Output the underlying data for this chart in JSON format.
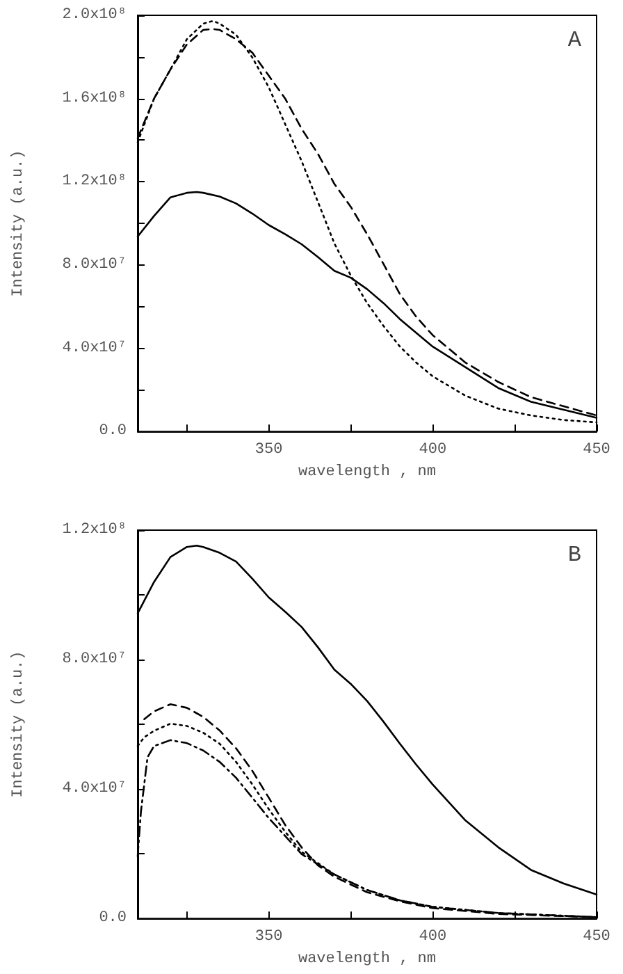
{
  "chart_data": [
    {
      "type": "line",
      "xlabel": "wavelength , nm",
      "ylabel": "Intensity (a.u.)",
      "annotations": [
        "A"
      ],
      "xlim": [
        310,
        450
      ],
      "xticks": [
        350,
        400,
        450,
        {
          "value": 325,
          "label": null
        },
        {
          "value": 375,
          "label": null
        },
        {
          "value": 425,
          "label": null
        }
      ],
      "ylim": [
        0,
        200000000
      ],
      "yticks": [
        {
          "value": 0,
          "label": "0.0"
        },
        {
          "value": 40000000,
          "label": "4.0x10⁷"
        },
        {
          "value": 80000000,
          "label": "8.0x10⁷"
        },
        {
          "value": 120000000,
          "label": "1.2x10⁸"
        },
        {
          "value": 160000000,
          "label": "1.6x10⁸"
        },
        {
          "value": 200000000,
          "label": "2.0x10⁸"
        },
        {
          "value": 20000000,
          "label": null
        },
        {
          "value": 60000000,
          "label": null
        },
        {
          "value": 100000000,
          "label": null
        },
        {
          "value": 140000000,
          "label": null
        },
        {
          "value": 180000000,
          "label": null
        }
      ],
      "grid": false,
      "marker": "none",
      "series": [
        {
          "color": "#000000",
          "line_style": "solid",
          "x": [
            310,
            315,
            320,
            325,
            328,
            330,
            335,
            340,
            345,
            350,
            355,
            360,
            365,
            370,
            375,
            380,
            385,
            390,
            395,
            400,
            410,
            420,
            430,
            440,
            450
          ],
          "values": [
            93700000,
            103600000,
            112500000,
            114700000,
            115100000,
            114700000,
            112900000,
            109600000,
            104700000,
            99200000,
            94800000,
            90000000,
            83800000,
            77200000,
            73900000,
            68400000,
            61700000,
            54000000,
            47400000,
            40800000,
            30900000,
            20900000,
            14300000,
            10400000,
            6600000
          ]
        },
        {
          "color": "#000000",
          "line_style": "dashed",
          "x": [
            310,
            315,
            320,
            325,
            330,
            333,
            335,
            340,
            345,
            350,
            355,
            360,
            365,
            370,
            375,
            380,
            385,
            390,
            395,
            400,
            410,
            420,
            430,
            440,
            450
          ],
          "values": [
            141000000,
            160000000,
            174000000,
            186000000,
            193000000,
            193400000,
            193000000,
            188500000,
            182000000,
            171000000,
            160000000,
            145500000,
            133400000,
            119000000,
            108000000,
            94800000,
            80500000,
            66000000,
            55100000,
            46300000,
            33100000,
            23800000,
            16500000,
            12100000,
            7700000
          ]
        },
        {
          "color": "#000000",
          "line_style": "dotted",
          "x": [
            310,
            315,
            320,
            325,
            330,
            333,
            335,
            340,
            345,
            350,
            355,
            360,
            365,
            370,
            375,
            380,
            385,
            390,
            395,
            400,
            410,
            420,
            430,
            440,
            450
          ],
          "values": [
            139000000,
            160000000,
            174000000,
            188500000,
            196000000,
            197300000,
            196000000,
            190700000,
            179700000,
            165400000,
            147700000,
            130000000,
            110300000,
            90400000,
            75000000,
            61700000,
            50700000,
            40800000,
            33100000,
            26500000,
            17200000,
            11000000,
            7700000,
            5500000,
            4400000
          ]
        }
      ]
    },
    {
      "type": "line",
      "xlabel": "wavelength , nm",
      "ylabel": "Intensity (a.u.)",
      "annotations": [
        "B"
      ],
      "xlim": [
        310,
        450
      ],
      "xticks": [
        350,
        400,
        450,
        {
          "value": 325,
          "label": null
        },
        {
          "value": 375,
          "label": null
        },
        {
          "value": 425,
          "label": null
        }
      ],
      "ylim": [
        0,
        120000000
      ],
      "yticks": [
        {
          "value": 0,
          "label": "0.0"
        },
        {
          "value": 40000000,
          "label": "4.0x10⁷"
        },
        {
          "value": 80000000,
          "label": "8.0x10⁷"
        },
        {
          "value": 120000000,
          "label": "1.2x10⁸"
        },
        {
          "value": 20000000,
          "label": null
        },
        {
          "value": 60000000,
          "label": null
        },
        {
          "value": 100000000,
          "label": null
        }
      ],
      "grid": false,
      "marker": "none",
      "series": [
        {
          "color": "#000000",
          "line_style": "solid",
          "x": [
            310,
            315,
            320,
            325,
            328,
            330,
            335,
            340,
            345,
            350,
            355,
            360,
            365,
            370,
            375,
            380,
            385,
            390,
            395,
            400,
            410,
            420,
            430,
            440,
            450
          ],
          "values": [
            94300000,
            104000000,
            111700000,
            114800000,
            115200000,
            114800000,
            113000000,
            110300000,
            105000000,
            99200000,
            94800000,
            90100000,
            83800000,
            76900000,
            72500000,
            67200000,
            60800000,
            54000000,
            47500000,
            41400000,
            30300000,
            22000000,
            15000000,
            10800000,
            7400000
          ]
        },
        {
          "color": "#000000",
          "line_style": "dashed",
          "x": [
            312,
            315,
            320,
            325,
            330,
            335,
            340,
            345,
            350,
            355,
            360,
            365,
            370,
            380,
            390,
            400,
            420,
            450
          ],
          "values": [
            61600000,
            64000000,
            66200000,
            65100000,
            62300000,
            58100000,
            52600000,
            45600000,
            37300000,
            28900000,
            22000000,
            16400000,
            12900000,
            8100000,
            5300000,
            3200000,
            1400000,
            400000
          ]
        },
        {
          "color": "#000000",
          "line_style": "dotted",
          "x": [
            310,
            312,
            315,
            320,
            325,
            330,
            335,
            340,
            345,
            350,
            355,
            360,
            370,
            380,
            390,
            400,
            420,
            450
          ],
          "values": [
            53300000,
            56000000,
            58000000,
            60200000,
            59500000,
            57400000,
            54000000,
            48400000,
            41400000,
            33800000,
            26800000,
            20600000,
            13600000,
            8800000,
            5600000,
            3600000,
            1700000,
            400000
          ]
        },
        {
          "color": "#000000",
          "line_style": "dashdot",
          "x": [
            310,
            311,
            313,
            315,
            320,
            325,
            330,
            335,
            340,
            345,
            350,
            355,
            360,
            370,
            380,
            390,
            400,
            420,
            450
          ],
          "values": [
            19200000,
            33100000,
            49800000,
            53300000,
            55100000,
            54200000,
            51900000,
            48400000,
            43500000,
            37300000,
            31000000,
            25500000,
            19900000,
            13600000,
            8800000,
            5600000,
            3600000,
            1700000,
            400000
          ]
        }
      ]
    }
  ]
}
